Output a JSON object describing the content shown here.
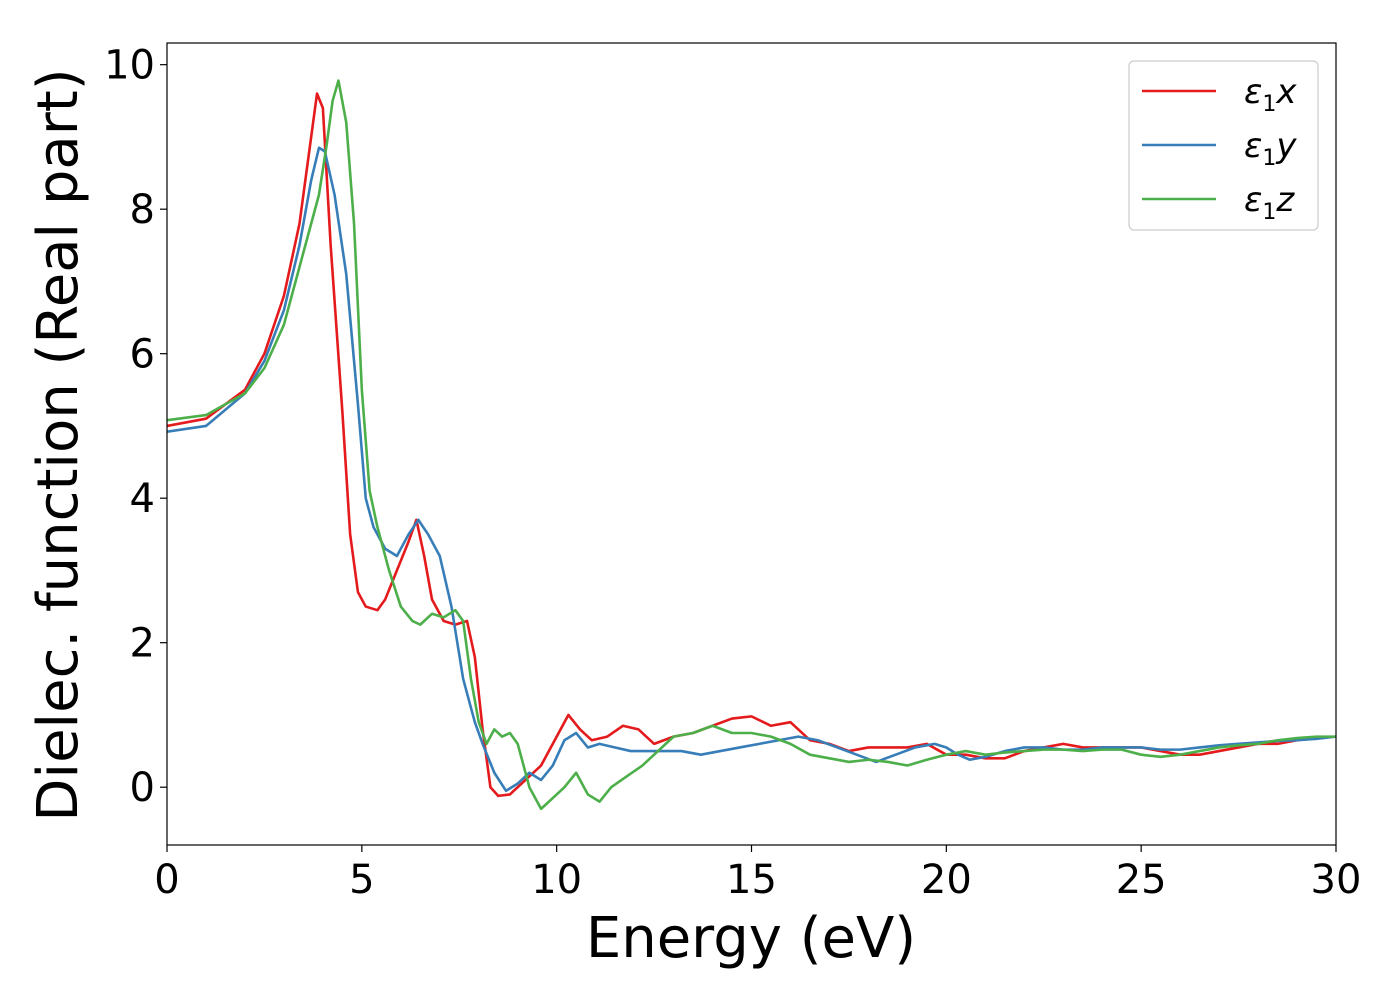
{
  "chart_data": {
    "type": "line",
    "xlabel": "Energy (eV)",
    "ylabel": "Dielec. function (Real part)",
    "xlim": [
      0,
      30
    ],
    "ylim": [
      -0.8,
      10.3
    ],
    "xticks": [
      0,
      5,
      10,
      15,
      20,
      25,
      30
    ],
    "yticks": [
      0,
      2,
      4,
      6,
      8,
      10
    ],
    "grid": false,
    "legend_position": "top-right",
    "series": [
      {
        "name": "x",
        "legend_prefix": "ε",
        "legend_sub": "1",
        "color": "#e41a1c",
        "x": [
          0,
          1,
          2,
          2.5,
          3,
          3.4,
          3.7,
          3.85,
          4.0,
          4.2,
          4.5,
          4.7,
          4.9,
          5.1,
          5.4,
          5.6,
          5.9,
          6.2,
          6.4,
          6.6,
          6.8,
          7.1,
          7.4,
          7.7,
          7.9,
          8.1,
          8.3,
          8.5,
          8.8,
          9.2,
          9.6,
          10.0,
          10.3,
          10.6,
          10.9,
          11.3,
          11.7,
          12.1,
          12.5,
          13.0,
          13.5,
          14.0,
          14.5,
          15.0,
          15.5,
          16.0,
          16.5,
          17.0,
          17.5,
          18.0,
          18.5,
          19.0,
          19.5,
          20.0,
          20.5,
          21.0,
          21.5,
          22.0,
          22.5,
          23.0,
          23.5,
          24.0,
          24.5,
          25.0,
          25.5,
          26.0,
          26.5,
          27.0,
          27.5,
          28.0,
          28.5,
          29.0,
          29.5,
          30.0
        ],
        "y": [
          5.0,
          5.1,
          5.5,
          6.0,
          6.8,
          7.8,
          9.0,
          9.6,
          9.4,
          7.5,
          5.2,
          3.5,
          2.7,
          2.5,
          2.45,
          2.6,
          3.0,
          3.4,
          3.7,
          3.2,
          2.6,
          2.3,
          2.25,
          2.3,
          1.8,
          0.8,
          0.0,
          -0.12,
          -0.1,
          0.1,
          0.3,
          0.7,
          1.0,
          0.8,
          0.65,
          0.7,
          0.85,
          0.8,
          0.6,
          0.7,
          0.75,
          0.85,
          0.95,
          0.98,
          0.85,
          0.9,
          0.65,
          0.6,
          0.5,
          0.55,
          0.55,
          0.55,
          0.6,
          0.45,
          0.45,
          0.4,
          0.4,
          0.5,
          0.55,
          0.6,
          0.55,
          0.55,
          0.55,
          0.55,
          0.5,
          0.45,
          0.45,
          0.5,
          0.55,
          0.6,
          0.6,
          0.65,
          0.68,
          0.7
        ]
      },
      {
        "name": "y",
        "legend_prefix": "ε",
        "legend_sub": "1",
        "color": "#377eb8",
        "x": [
          0,
          1,
          2,
          2.5,
          3,
          3.4,
          3.7,
          3.9,
          4.05,
          4.3,
          4.6,
          4.9,
          5.1,
          5.3,
          5.6,
          5.9,
          6.2,
          6.45,
          6.7,
          7.0,
          7.3,
          7.6,
          7.9,
          8.1,
          8.4,
          8.7,
          9.0,
          9.3,
          9.6,
          9.9,
          10.2,
          10.5,
          10.8,
          11.1,
          11.5,
          11.9,
          12.3,
          12.7,
          13.2,
          13.7,
          14.2,
          14.7,
          15.2,
          15.7,
          16.2,
          16.7,
          17.2,
          17.7,
          18.2,
          18.7,
          19.2,
          19.7,
          20.0,
          20.3,
          20.6,
          21.0,
          21.5,
          22.0,
          22.5,
          23.0,
          23.5,
          24.0,
          24.5,
          25.0,
          25.5,
          26.0,
          26.5,
          27.0,
          27.5,
          28.0,
          28.5,
          29.0,
          29.5,
          30.0
        ],
        "y": [
          4.92,
          5.0,
          5.45,
          5.9,
          6.6,
          7.5,
          8.4,
          8.85,
          8.8,
          8.2,
          7.1,
          5.3,
          4.0,
          3.6,
          3.3,
          3.2,
          3.5,
          3.7,
          3.5,
          3.2,
          2.5,
          1.5,
          0.9,
          0.6,
          0.2,
          -0.05,
          0.05,
          0.2,
          0.1,
          0.3,
          0.65,
          0.75,
          0.55,
          0.6,
          0.55,
          0.5,
          0.5,
          0.5,
          0.5,
          0.45,
          0.5,
          0.55,
          0.6,
          0.65,
          0.7,
          0.65,
          0.55,
          0.45,
          0.35,
          0.45,
          0.55,
          0.6,
          0.55,
          0.45,
          0.38,
          0.42,
          0.5,
          0.55,
          0.55,
          0.52,
          0.52,
          0.55,
          0.55,
          0.55,
          0.52,
          0.52,
          0.55,
          0.58,
          0.6,
          0.62,
          0.64,
          0.65,
          0.67,
          0.7
        ]
      },
      {
        "name": "z",
        "legend_prefix": "ε",
        "legend_sub": "1",
        "color": "#4daf4a",
        "x": [
          0,
          1,
          2,
          2.5,
          3,
          3.4,
          3.7,
          3.9,
          4.1,
          4.25,
          4.4,
          4.6,
          4.8,
          5.0,
          5.2,
          5.4,
          5.7,
          6.0,
          6.3,
          6.5,
          6.8,
          7.1,
          7.4,
          7.6,
          7.8,
          8.0,
          8.2,
          8.4,
          8.6,
          8.8,
          9.0,
          9.3,
          9.6,
          9.9,
          10.2,
          10.5,
          10.8,
          11.1,
          11.4,
          11.8,
          12.2,
          12.6,
          13.0,
          13.5,
          14.0,
          14.5,
          15.0,
          15.5,
          16.0,
          16.5,
          17.0,
          17.5,
          18.0,
          18.5,
          19.0,
          19.5,
          20.0,
          20.5,
          21.0,
          21.5,
          22.0,
          22.5,
          23.0,
          23.5,
          24.0,
          24.5,
          25.0,
          25.5,
          26.0,
          26.5,
          27.0,
          27.5,
          28.0,
          28.5,
          29.0,
          29.5,
          30.0
        ],
        "y": [
          5.08,
          5.15,
          5.45,
          5.8,
          6.4,
          7.2,
          7.8,
          8.2,
          8.9,
          9.5,
          9.78,
          9.2,
          7.8,
          5.5,
          4.1,
          3.6,
          3.0,
          2.5,
          2.3,
          2.25,
          2.4,
          2.35,
          2.45,
          2.3,
          1.5,
          0.9,
          0.6,
          0.8,
          0.7,
          0.75,
          0.6,
          0.0,
          -0.3,
          -0.15,
          0.0,
          0.2,
          -0.1,
          -0.2,
          0.0,
          0.15,
          0.3,
          0.5,
          0.7,
          0.75,
          0.85,
          0.75,
          0.75,
          0.7,
          0.6,
          0.45,
          0.4,
          0.35,
          0.38,
          0.35,
          0.3,
          0.38,
          0.45,
          0.5,
          0.45,
          0.48,
          0.5,
          0.52,
          0.52,
          0.5,
          0.52,
          0.52,
          0.45,
          0.42,
          0.45,
          0.5,
          0.55,
          0.58,
          0.6,
          0.65,
          0.68,
          0.7,
          0.7
        ]
      }
    ]
  }
}
